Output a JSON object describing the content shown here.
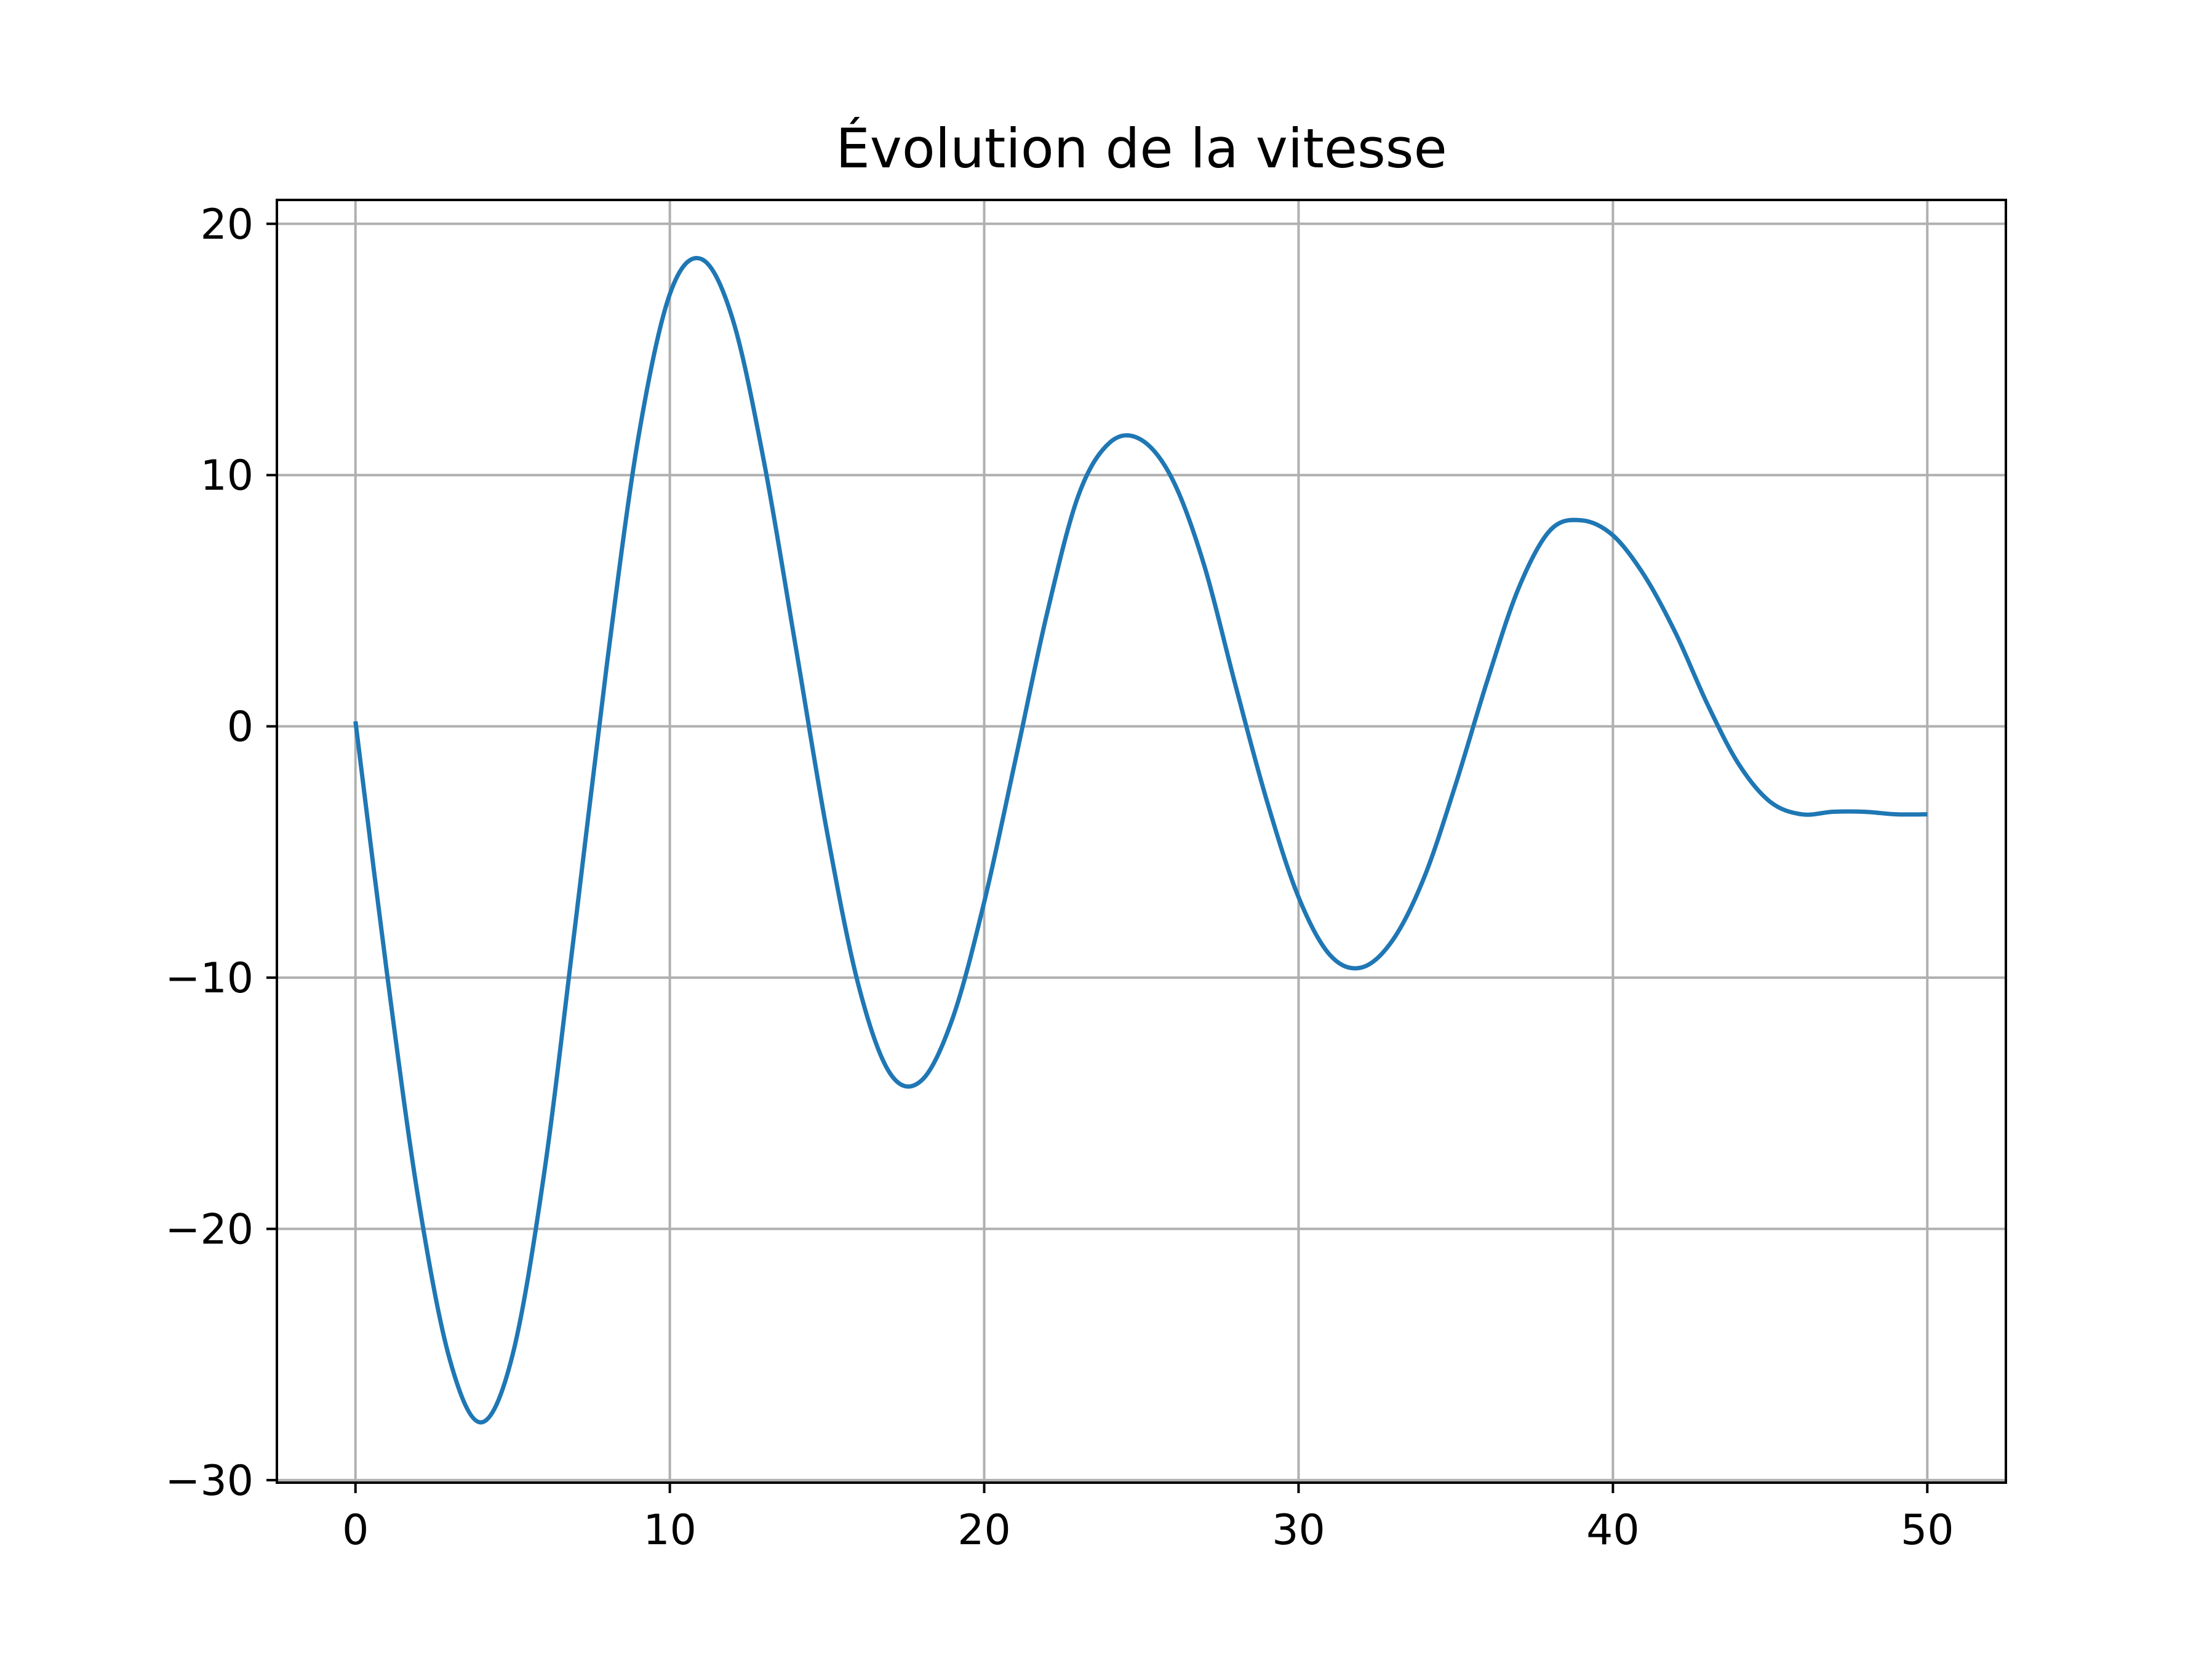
{
  "chart_data": {
    "type": "line",
    "title": "Évolution de la vitesse",
    "xlabel": "",
    "ylabel": "",
    "xlim": [
      -2.5,
      52.5
    ],
    "ylim": [
      -30.1,
      20.95
    ],
    "xticks": [
      0,
      10,
      20,
      30,
      40,
      50
    ],
    "yticks": [
      -30,
      -20,
      -10,
      0,
      10,
      20
    ],
    "xtick_labels": [
      "0",
      "10",
      "20",
      "30",
      "40",
      "50"
    ],
    "ytick_labels": [
      "−30",
      "−20",
      "−10",
      "0",
      "10",
      "20"
    ],
    "grid": true,
    "legend": "none",
    "series": [
      {
        "color": "#1f77b4",
        "x": [
          0,
          1,
          2,
          3,
          4,
          5,
          6,
          7,
          8,
          9,
          10,
          11,
          12,
          13,
          14,
          15,
          16,
          17,
          18,
          19,
          20,
          21,
          22,
          23,
          24,
          25,
          26,
          27,
          28,
          29,
          30,
          31,
          32,
          33,
          34,
          35,
          36,
          37,
          38,
          39,
          40,
          41,
          42,
          43,
          44,
          45,
          46,
          47,
          48,
          49,
          50
        ],
        "y": [
          0.2,
          -9.8,
          -18.8,
          -25.2,
          -27.7,
          -25.0,
          -17.8,
          -7.8,
          2.5,
          11.5,
          17.2,
          18.6,
          16.2,
          10.5,
          3.2,
          -4.2,
          -10.3,
          -13.8,
          -14.1,
          -11.6,
          -7.0,
          -1.3,
          4.5,
          9.2,
          11.3,
          11.4,
          9.8,
          6.4,
          1.6,
          -3.0,
          -6.8,
          -9.1,
          -9.6,
          -8.5,
          -6.0,
          -2.3,
          1.8,
          5.5,
          7.8,
          8.2,
          7.6,
          6.0,
          3.7,
          0.9,
          -1.5,
          -3.0,
          -3.5,
          -3.4,
          -3.4,
          -3.5,
          -3.5
        ]
      }
    ]
  }
}
